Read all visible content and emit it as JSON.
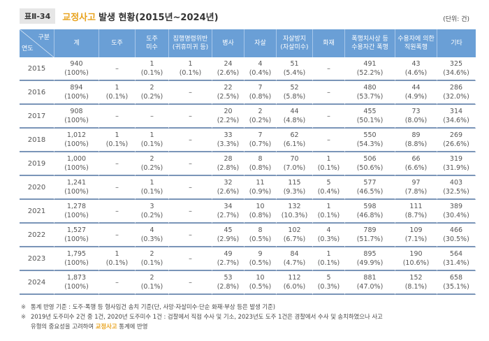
{
  "title": {
    "label": "표Ⅱ-34",
    "highlight": "교정사고",
    "text": "발생 현황(2015년~2024년)"
  },
  "unit": "(단위: 건)",
  "colors": {
    "header_bg": "#6a9fd6",
    "highlight": "#e8a21c",
    "row_divider": "#7a95b8"
  },
  "table": {
    "corner": {
      "top": "구분",
      "bottom": "연도"
    },
    "headers": [
      {
        "line1": "계",
        "line2": ""
      },
      {
        "line1": "도주",
        "line2": ""
      },
      {
        "line1": "도주",
        "line2": "미수"
      },
      {
        "line1": "집행명령위반",
        "line2": "(귀휴미귀 등)"
      },
      {
        "line1": "병사",
        "line2": ""
      },
      {
        "line1": "자살",
        "line2": ""
      },
      {
        "line1": "자살방지",
        "line2": "(자살미수)"
      },
      {
        "line1": "화재",
        "line2": ""
      },
      {
        "line1": "폭행치사상 등",
        "line2": "수용자간 폭행"
      },
      {
        "line1": "수용자에 의한",
        "line2": "직원폭행"
      },
      {
        "line1": "기타",
        "line2": ""
      }
    ],
    "rows": [
      {
        "year": "2015",
        "cells": [
          {
            "v": "940",
            "p": "(100%)"
          },
          {
            "v": "–",
            "p": ""
          },
          {
            "v": "1",
            "p": "(0.1%)"
          },
          {
            "v": "1",
            "p": "(0.1%)"
          },
          {
            "v": "24",
            "p": "(2.6%)"
          },
          {
            "v": "4",
            "p": "(0.4%)"
          },
          {
            "v": "51",
            "p": "(5.4%)"
          },
          {
            "v": "–",
            "p": ""
          },
          {
            "v": "491",
            "p": "(52.2%)"
          },
          {
            "v": "43",
            "p": "(4.6%)"
          },
          {
            "v": "325",
            "p": "(34.6%)"
          }
        ]
      },
      {
        "year": "2016",
        "cells": [
          {
            "v": "894",
            "p": "(100%)"
          },
          {
            "v": "1",
            "p": "(0.1%)"
          },
          {
            "v": "2",
            "p": "(0.2%)"
          },
          {
            "v": "–",
            "p": ""
          },
          {
            "v": "22",
            "p": "(2.5%)"
          },
          {
            "v": "7",
            "p": "(0.8%)"
          },
          {
            "v": "52",
            "p": "(5.8%)"
          },
          {
            "v": "–",
            "p": ""
          },
          {
            "v": "480",
            "p": "(53.7%)"
          },
          {
            "v": "44",
            "p": "(4.9%)"
          },
          {
            "v": "286",
            "p": "(32.0%)"
          }
        ]
      },
      {
        "year": "2017",
        "cells": [
          {
            "v": "908",
            "p": "(100%)"
          },
          {
            "v": "–",
            "p": ""
          },
          {
            "v": "–",
            "p": ""
          },
          {
            "v": "–",
            "p": ""
          },
          {
            "v": "20",
            "p": "(2.2%)"
          },
          {
            "v": "2",
            "p": "(0.2%)"
          },
          {
            "v": "44",
            "p": "(4.8%)"
          },
          {
            "v": "–",
            "p": ""
          },
          {
            "v": "455",
            "p": "(50.1%)"
          },
          {
            "v": "73",
            "p": "(8.0%)"
          },
          {
            "v": "314",
            "p": "(34.6%)"
          }
        ]
      },
      {
        "year": "2018",
        "cells": [
          {
            "v": "1,012",
            "p": "(100%)"
          },
          {
            "v": "1",
            "p": "(0.1%)"
          },
          {
            "v": "1",
            "p": "(0.1%)"
          },
          {
            "v": "–",
            "p": ""
          },
          {
            "v": "33",
            "p": "(3.3%)"
          },
          {
            "v": "7",
            "p": "(0.7%)"
          },
          {
            "v": "62",
            "p": "(6.1%)"
          },
          {
            "v": "–",
            "p": ""
          },
          {
            "v": "550",
            "p": "(54.3%)"
          },
          {
            "v": "89",
            "p": "(8.8%)"
          },
          {
            "v": "269",
            "p": "(26.6%)"
          }
        ]
      },
      {
        "year": "2019",
        "cells": [
          {
            "v": "1,000",
            "p": "(100%)"
          },
          {
            "v": "–",
            "p": ""
          },
          {
            "v": "2",
            "p": "(0.2%)"
          },
          {
            "v": "–",
            "p": ""
          },
          {
            "v": "28",
            "p": "(2.8%)"
          },
          {
            "v": "8",
            "p": "(0.8%)"
          },
          {
            "v": "70",
            "p": "(7.0%)"
          },
          {
            "v": "1",
            "p": "(0.1%)"
          },
          {
            "v": "506",
            "p": "(50.6%)"
          },
          {
            "v": "66",
            "p": "(6.6%)"
          },
          {
            "v": "319",
            "p": "(31.9%)"
          }
        ]
      },
      {
        "year": "2020",
        "cells": [
          {
            "v": "1,241",
            "p": "(100%)"
          },
          {
            "v": "–",
            "p": ""
          },
          {
            "v": "1",
            "p": "(0.1%)"
          },
          {
            "v": "–",
            "p": ""
          },
          {
            "v": "32",
            "p": "(2.6%)"
          },
          {
            "v": "11",
            "p": "(0.9%)"
          },
          {
            "v": "115",
            "p": "(9.3%)"
          },
          {
            "v": "5",
            "p": "(0.4%)"
          },
          {
            "v": "577",
            "p": "(46.5%)"
          },
          {
            "v": "97",
            "p": "(7.8%)"
          },
          {
            "v": "403",
            "p": "(32.5%)"
          }
        ]
      },
      {
        "year": "2021",
        "cells": [
          {
            "v": "1,278",
            "p": "(100%)"
          },
          {
            "v": "–",
            "p": ""
          },
          {
            "v": "3",
            "p": "(0.2%)"
          },
          {
            "v": "–",
            "p": ""
          },
          {
            "v": "34",
            "p": "(2.7%)"
          },
          {
            "v": "10",
            "p": "(0.8%)"
          },
          {
            "v": "132",
            "p": "(10.3%)"
          },
          {
            "v": "1",
            "p": "(0.1%)"
          },
          {
            "v": "598",
            "p": "(46.8%)"
          },
          {
            "v": "111",
            "p": "(8.7%)"
          },
          {
            "v": "389",
            "p": "(30.4%)"
          }
        ]
      },
      {
        "year": "2022",
        "cells": [
          {
            "v": "1,527",
            "p": "(100%)"
          },
          {
            "v": "–",
            "p": ""
          },
          {
            "v": "4",
            "p": "(0.3%)"
          },
          {
            "v": "–",
            "p": ""
          },
          {
            "v": "45",
            "p": "(2.9%)"
          },
          {
            "v": "8",
            "p": "(0.5%)"
          },
          {
            "v": "102",
            "p": "(6.7%)"
          },
          {
            "v": "4",
            "p": "(0.3%)"
          },
          {
            "v": "789",
            "p": "(51.7%)"
          },
          {
            "v": "109",
            "p": "(7.1%)"
          },
          {
            "v": "466",
            "p": "(30.5%)"
          }
        ]
      },
      {
        "year": "2023",
        "cells": [
          {
            "v": "1,795",
            "p": "(100%)"
          },
          {
            "v": "1",
            "p": "(0.1%)"
          },
          {
            "v": "2",
            "p": "(0.1%)"
          },
          {
            "v": "–",
            "p": ""
          },
          {
            "v": "49",
            "p": "(2.7%)"
          },
          {
            "v": "9",
            "p": "(0.5%)"
          },
          {
            "v": "84",
            "p": "(4.7%)"
          },
          {
            "v": "1",
            "p": "(0.1%)"
          },
          {
            "v": "895",
            "p": "(49.9%)"
          },
          {
            "v": "190",
            "p": "(10.6%)"
          },
          {
            "v": "564",
            "p": "(31.4%)"
          }
        ]
      },
      {
        "year": "2024",
        "cells": [
          {
            "v": "1,873",
            "p": "(100%)"
          },
          {
            "v": "–",
            "p": ""
          },
          {
            "v": "2",
            "p": "(0.1%)"
          },
          {
            "v": "–",
            "p": ""
          },
          {
            "v": "53",
            "p": "(2.8%)"
          },
          {
            "v": "10",
            "p": "(0.5%)"
          },
          {
            "v": "112",
            "p": "(6.0%)"
          },
          {
            "v": "5",
            "p": "(0.3%)"
          },
          {
            "v": "881",
            "p": "(47.0%)"
          },
          {
            "v": "152",
            "p": "(8.1%)"
          },
          {
            "v": "658",
            "p": "(35.1%)"
          }
        ]
      }
    ]
  },
  "footnotes": [
    {
      "mark": "※",
      "text": "통계 반영 기준 : 도주·폭행 등 형사입건 송치 기준(단, 사망·자살미수·단순 화재·부상 등은 발생 기준)"
    },
    {
      "mark": "※",
      "text": "2019년 도주미수 2건 중 1건, 2020년 도주미수 1건 : 검찰에서 직접 수사 및 기소, 2023년도 도주 1건은 경찰에서 수사 및 송치하였으나 사고",
      "text2_pre": "유형의 중요성을 고려하여 ",
      "text2_highlight": "교정사고",
      "text2_post": " 통계에 반영"
    }
  ]
}
